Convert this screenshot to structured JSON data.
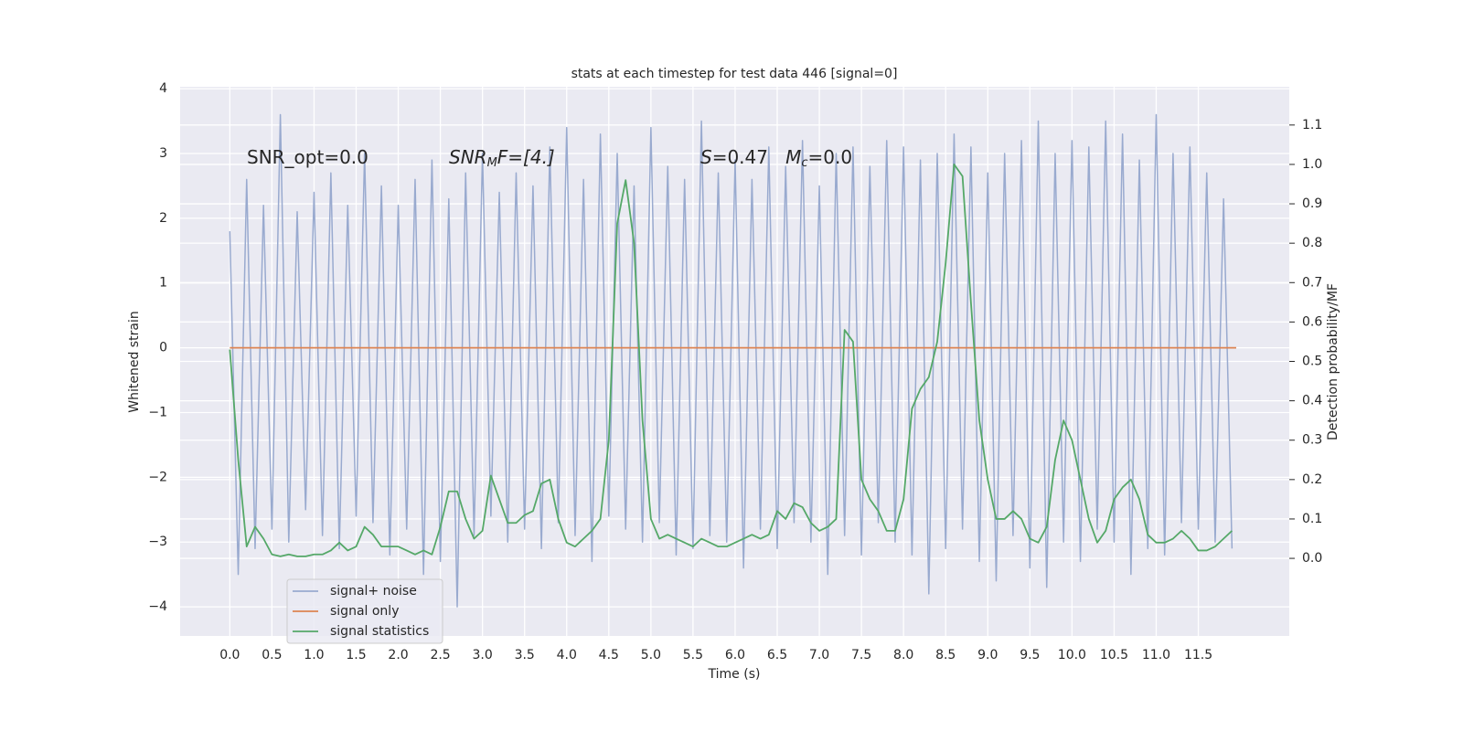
{
  "chart_data": {
    "type": "line",
    "title": "stats at each timestep for test data 446 [signal=0]",
    "xlabel": "Time (s)",
    "ylabel": "Whitened strain",
    "y2label": "Detection probability/MF",
    "annotations": [
      [
        "SNR_opt=0.0"
      ],
      [
        "SNR",
        "M",
        "F=[4.]"
      ],
      [
        "S",
        "=0.47   ",
        "M",
        "c",
        "=0.0"
      ]
    ],
    "grid": true,
    "legend": "lower left",
    "xlim": [
      -0.59,
      12.58
    ],
    "ylim": [
      -4.45,
      4.03
    ],
    "y2lim": [
      -0.197,
      1.197
    ],
    "xticks": [
      {
        "value": 0,
        "label": "0.0"
      },
      0.5,
      {
        "value": 1,
        "label": "1.0"
      },
      1.5,
      {
        "value": 2,
        "label": "2.0"
      },
      2.5,
      {
        "value": 3,
        "label": "3.0"
      },
      3.5,
      {
        "value": 4,
        "label": "4.0"
      },
      4.5,
      {
        "value": 5,
        "label": "5.0"
      },
      5.5,
      {
        "value": 6,
        "label": "6.0"
      },
      6.5,
      {
        "value": 7,
        "label": "7.0"
      },
      7.5,
      {
        "value": 8,
        "label": "8.0"
      },
      8.5,
      {
        "value": 9,
        "label": "9.0"
      },
      9.5,
      {
        "value": 10,
        "label": "10.0"
      },
      10.5,
      {
        "value": 11,
        "label": "11.0"
      },
      11.5
    ],
    "yticks": [
      {
        "value": -4,
        "label": "−4"
      },
      {
        "value": -3,
        "label": "−3"
      },
      {
        "value": -2,
        "label": "−2"
      },
      {
        "value": -1,
        "label": "−1"
      },
      0,
      1,
      2,
      3,
      4
    ],
    "y2ticks": [
      {
        "value": 0,
        "label": "0.0"
      },
      0.1,
      0.2,
      0.3,
      0.4,
      0.5,
      0.6,
      0.7,
      0.8,
      0.9,
      {
        "value": 1,
        "label": "1.0"
      },
      1.1
    ],
    "x": [
      0,
      0.1,
      0.2,
      0.3,
      0.4,
      0.5,
      0.6,
      0.7,
      0.8,
      0.9,
      1,
      1.1,
      1.2,
      1.3,
      1.4,
      1.5,
      1.6,
      1.7,
      1.8,
      1.9,
      2,
      2.1,
      2.2,
      2.3,
      2.4,
      2.5,
      2.6,
      2.7,
      2.8,
      2.9,
      3,
      3.1,
      3.2,
      3.3,
      3.4,
      3.5,
      3.6,
      3.7,
      3.8,
      3.9,
      4,
      4.1,
      4.2,
      4.3,
      4.4,
      4.5,
      4.6,
      4.7,
      4.8,
      4.9,
      5,
      5.1,
      5.2,
      5.3,
      5.4,
      5.5,
      5.6,
      5.7,
      5.8,
      5.9,
      6,
      6.1,
      6.2,
      6.3,
      6.4,
      6.5,
      6.6,
      6.7,
      6.8,
      6.9,
      7,
      7.1,
      7.2,
      7.3,
      7.4,
      7.5,
      7.6,
      7.7,
      7.8,
      7.9,
      8,
      8.1,
      8.2,
      8.3,
      8.4,
      8.5,
      8.6,
      8.7,
      8.8,
      8.9,
      9,
      9.1,
      9.2,
      9.3,
      9.4,
      9.5,
      9.6,
      9.7,
      9.8,
      9.9,
      10,
      10.1,
      10.2,
      10.3,
      10.4,
      10.5,
      10.6,
      10.7,
      10.8,
      10.9,
      11,
      11.1,
      11.2,
      11.3,
      11.4,
      11.5,
      11.6,
      11.7,
      11.8,
      11.9
    ],
    "series": [
      {
        "name": "signal+ noise",
        "color": "#99aacf",
        "values": [
          1.8,
          -3.5,
          2.6,
          -3.1,
          2.2,
          -2.8,
          3.6,
          -3.0,
          2.1,
          -2.5,
          2.4,
          -2.9,
          2.7,
          -3.1,
          2.2,
          -2.6,
          3.0,
          -2.7,
          2.5,
          -3.2,
          2.2,
          -2.8,
          2.6,
          -3.5,
          2.9,
          -3.3,
          2.3,
          -4.0,
          2.7,
          -2.9,
          3.0,
          -2.6,
          2.4,
          -3.0,
          2.7,
          -2.8,
          2.5,
          -3.1,
          3.1,
          -2.7,
          3.4,
          -2.9,
          2.6,
          -3.3,
          3.3,
          -2.6,
          3.0,
          -2.8,
          2.5,
          -3.0,
          3.4,
          -2.7,
          2.8,
          -3.2,
          2.6,
          -3.1,
          3.5,
          -2.9,
          2.7,
          -3.0,
          2.9,
          -3.4,
          2.6,
          -2.8,
          3.1,
          -3.1,
          2.8,
          -2.7,
          3.2,
          -3.0,
          2.5,
          -3.5,
          3.0,
          -2.9,
          3.1,
          -3.2,
          2.8,
          -2.7,
          3.2,
          -3.0,
          3.1,
          -3.2,
          2.9,
          -3.8,
          3.0,
          -3.1,
          3.3,
          -2.8,
          3.1,
          -3.3,
          2.7,
          -3.6,
          3.0,
          -2.9,
          3.2,
          -3.4,
          3.5,
          -3.7,
          3.0,
          -3.0,
          3.2,
          -3.3,
          3.1,
          -2.8,
          3.5,
          -3.0,
          3.3,
          -3.5,
          2.9,
          -3.1,
          3.6,
          -3.2,
          3.0,
          -2.7,
          3.1,
          -2.8,
          2.7,
          -3.0,
          2.3,
          -3.1
        ]
      },
      {
        "name": "signal only",
        "color": "#dd8452",
        "x": [
          0,
          11.95
        ],
        "values": [
          0,
          0
        ]
      },
      {
        "name": "signal statistics",
        "color": "#55a868",
        "axis": "y2",
        "values": [
          0.53,
          0.25,
          0.03,
          0.08,
          0.05,
          0.01,
          0.005,
          0.01,
          0.005,
          0.005,
          0.01,
          0.01,
          0.02,
          0.04,
          0.02,
          0.03,
          0.08,
          0.06,
          0.03,
          0.03,
          0.03,
          0.02,
          0.01,
          0.02,
          0.01,
          0.08,
          0.17,
          0.17,
          0.1,
          0.05,
          0.07,
          0.21,
          0.15,
          0.09,
          0.09,
          0.11,
          0.12,
          0.19,
          0.2,
          0.1,
          0.04,
          0.03,
          0.05,
          0.07,
          0.1,
          0.3,
          0.85,
          0.96,
          0.8,
          0.35,
          0.1,
          0.05,
          0.06,
          0.05,
          0.04,
          0.03,
          0.05,
          0.04,
          0.03,
          0.03,
          0.04,
          0.05,
          0.06,
          0.05,
          0.06,
          0.12,
          0.1,
          0.14,
          0.13,
          0.09,
          0.07,
          0.08,
          0.1,
          0.58,
          0.55,
          0.2,
          0.15,
          0.12,
          0.07,
          0.07,
          0.15,
          0.38,
          0.43,
          0.46,
          0.55,
          0.75,
          1.0,
          0.97,
          0.65,
          0.35,
          0.2,
          0.1,
          0.1,
          0.12,
          0.1,
          0.05,
          0.04,
          0.08,
          0.25,
          0.35,
          0.3,
          0.2,
          0.1,
          0.04,
          0.07,
          0.15,
          0.18,
          0.2,
          0.15,
          0.06,
          0.04,
          0.04,
          0.05,
          0.07,
          0.05,
          0.02,
          0.02,
          0.03,
          0.05,
          0.07
        ]
      }
    ]
  }
}
